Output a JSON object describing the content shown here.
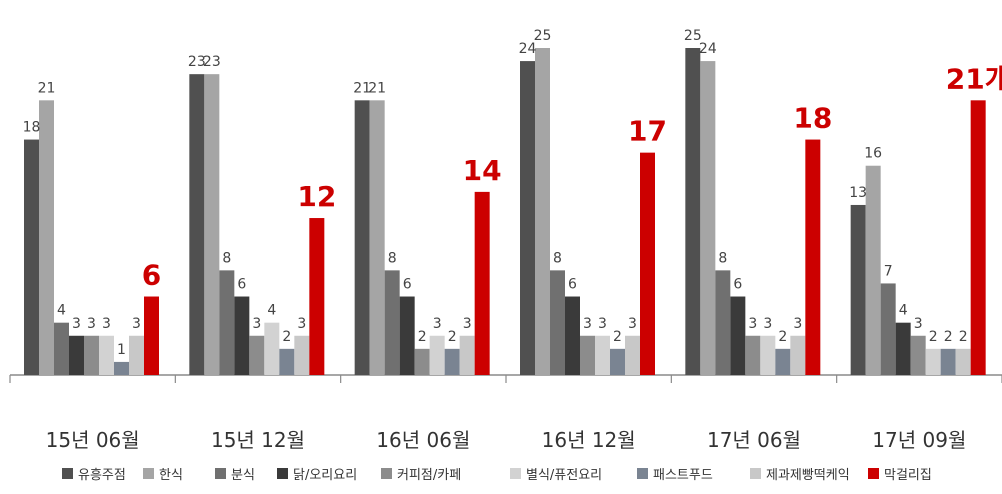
{
  "chart_data": {
    "type": "bar",
    "categories": [
      "15년 06월",
      "15년 12월",
      "16년 06월",
      "16년 12월",
      "17년 06월",
      "17년 09월"
    ],
    "series": [
      {
        "name": "유흥주점",
        "color": "#505050",
        "values": [
          18,
          23,
          21,
          24,
          25,
          13
        ]
      },
      {
        "name": "한식",
        "color": "#a5a5a5",
        "values": [
          21,
          23,
          21,
          25,
          24,
          16
        ]
      },
      {
        "name": "분식",
        "color": "#707070",
        "values": [
          4,
          8,
          8,
          8,
          8,
          7
        ]
      },
      {
        "name": "닭/오리요리",
        "color": "#3a3a3a",
        "values": [
          3,
          6,
          6,
          6,
          6,
          4
        ]
      },
      {
        "name": "커피점/카페",
        "color": "#8c8c8c",
        "values": [
          3,
          3,
          2,
          3,
          3,
          3
        ]
      },
      {
        "name": "별식/퓨전요리",
        "color": "#d2d2d2",
        "values": [
          3,
          4,
          3,
          3,
          3,
          2
        ]
      },
      {
        "name": "패스트푸드",
        "color": "#7a8492",
        "values": [
          1,
          2,
          2,
          2,
          2,
          2
        ]
      },
      {
        "name": "제과제빵떡케익",
        "color": "#c8c8c8",
        "values": [
          3,
          3,
          3,
          3,
          3,
          2
        ]
      },
      {
        "name": "막걸리집",
        "color": "#cc0000",
        "values": [
          6,
          12,
          14,
          17,
          18,
          21
        ]
      }
    ],
    "highlight_labels": [
      "6",
      "12",
      "14",
      "17",
      "18",
      "21개"
    ],
    "ylim": [
      0,
      26
    ],
    "grid": false,
    "legend_position": "bottom"
  }
}
